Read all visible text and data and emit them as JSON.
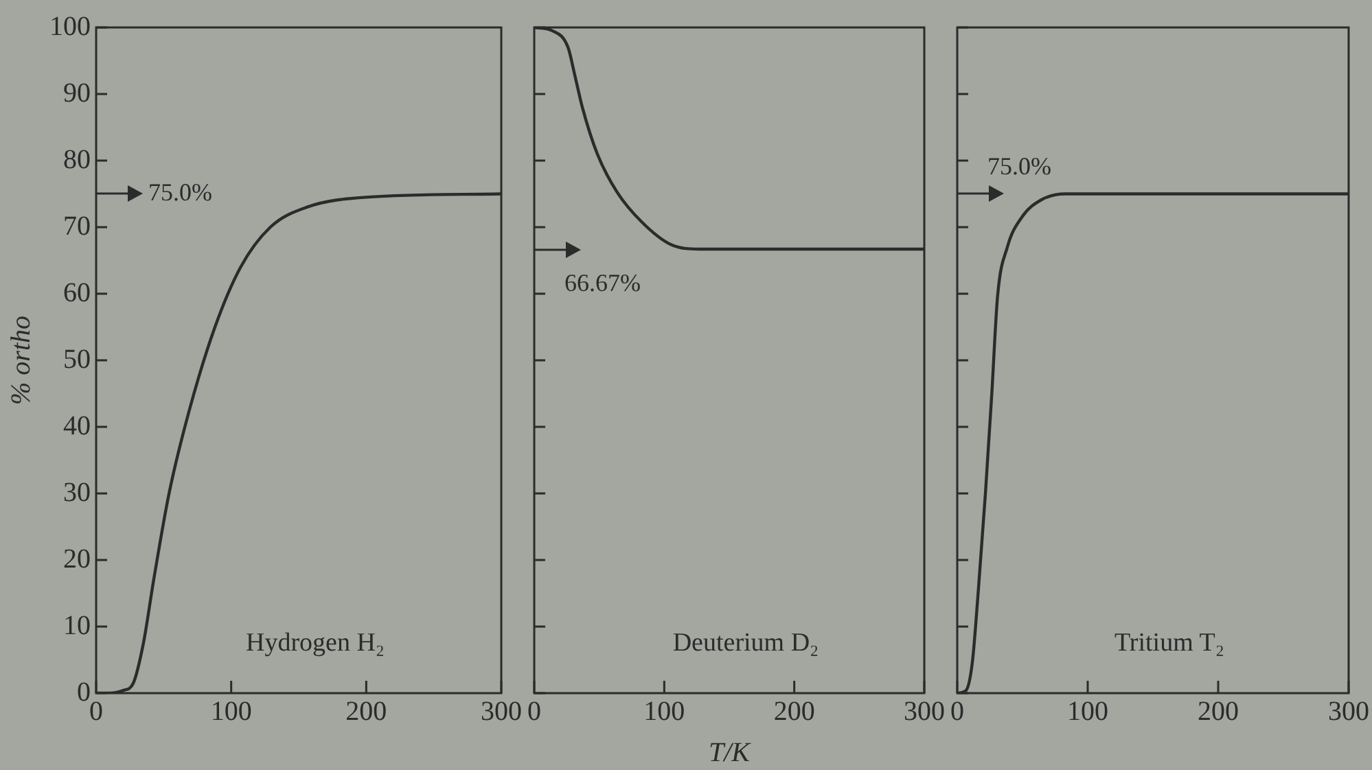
{
  "chart_data": [
    {
      "type": "line",
      "title": "Hydrogen H₂",
      "ylabel": "% ortho",
      "xlim": [
        0,
        300
      ],
      "xticks": [
        0,
        100,
        200,
        300
      ],
      "ylim": [
        0,
        100
      ],
      "yticks": [
        0,
        10,
        20,
        30,
        40,
        50,
        60,
        70,
        80,
        90,
        100
      ],
      "grid": false,
      "legend": false,
      "marker": "none",
      "annotations": [
        "75.0%"
      ],
      "series": [
        {
          "color": "#2b2b2b",
          "x": [
            0,
            10,
            20,
            27.5,
            35,
            42.6,
            54,
            69,
            88,
            107,
            129,
            156,
            200,
            300
          ],
          "values": [
            0,
            0,
            0.4,
            1.5,
            7.5,
            17,
            30,
            42.5,
            55,
            64,
            70,
            73,
            74.5,
            75
          ]
        }
      ]
    },
    {
      "type": "line",
      "title": "Deuterium D₂",
      "xlabel": "T/K",
      "xlim": [
        0,
        300
      ],
      "xticks": [
        0,
        100,
        200,
        300
      ],
      "ylim": [
        0,
        100
      ],
      "yticks": [
        0,
        10,
        20,
        30,
        40,
        50,
        60,
        70,
        80,
        90,
        100
      ],
      "tick_labels": "x",
      "grid": false,
      "legend": false,
      "marker": "none",
      "annotations": [
        "66.67%"
      ],
      "series": [
        {
          "color": "#2b2b2b",
          "x": [
            0,
            14,
            26,
            31,
            37,
            48.5,
            63.6,
            82.6,
            105,
            128,
            200,
            300
          ],
          "values": [
            100,
            99.5,
            97,
            93,
            88,
            81,
            75.3,
            70.8,
            67.4,
            66.7,
            66.7,
            66.7
          ]
        }
      ]
    },
    {
      "type": "line",
      "title": "Tritium T₂",
      "xlim": [
        0,
        300
      ],
      "xticks": [
        0,
        100,
        200,
        300
      ],
      "ylim": [
        0,
        100
      ],
      "yticks": [
        0,
        10,
        20,
        30,
        40,
        50,
        60,
        70,
        80,
        90,
        100
      ],
      "tick_labels": "x",
      "grid": false,
      "legend": false,
      "marker": "none",
      "annotations": [
        "75.0%"
      ],
      "series": [
        {
          "color": "#2b2b2b",
          "x": [
            0,
            6.7,
            11.5,
            16,
            21.6,
            26.4,
            30.9,
            38.4,
            49.5,
            64.4,
            83,
            200,
            300
          ],
          "values": [
            0,
            0.4,
            4.5,
            15,
            30,
            44.7,
            59.6,
            67,
            71.5,
            74.1,
            75,
            75,
            75
          ]
        }
      ]
    }
  ]
}
